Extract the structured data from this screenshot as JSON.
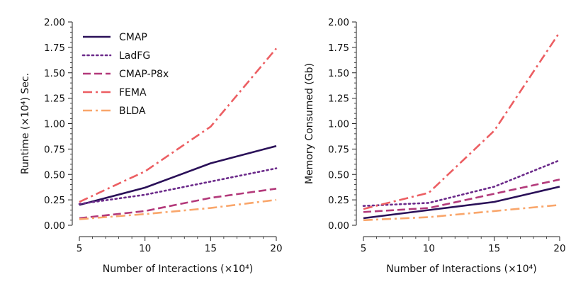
{
  "chart_data": [
    {
      "type": "line",
      "title": "",
      "xlabel": "Number of Interactions (×10⁴)",
      "ylabel": "Runtime (×10⁴) Sec.",
      "x": [
        5,
        10,
        15,
        20
      ],
      "xlim": [
        5,
        20
      ],
      "ylim": [
        0,
        2.0
      ],
      "xticks": [
        "5",
        "10",
        "15",
        "20"
      ],
      "yticks": [
        "0.00",
        "0.25",
        "0.50",
        "0.75",
        "1.00",
        "1.25",
        "1.50",
        "1.75",
        "2.00"
      ],
      "legend": "top-left",
      "series": [
        {
          "name": "CMAP",
          "color": "#2a1058",
          "dash": "solid",
          "values": [
            0.2,
            0.37,
            0.61,
            0.78
          ]
        },
        {
          "name": "LadFG",
          "color": "#6b2a8a",
          "dash": "dotted",
          "values": [
            0.21,
            0.3,
            0.43,
            0.56
          ]
        },
        {
          "name": "CMAP-P8x",
          "color": "#b3397a",
          "dash": "dashed",
          "values": [
            0.07,
            0.14,
            0.27,
            0.36
          ]
        },
        {
          "name": "FEMA",
          "color": "#ec5e62",
          "dash": "dashdot",
          "values": [
            0.23,
            0.53,
            0.97,
            1.74
          ]
        },
        {
          "name": "BLDA",
          "color": "#f9a66b",
          "dash": "dashdot",
          "values": [
            0.06,
            0.11,
            0.17,
            0.25
          ]
        }
      ]
    },
    {
      "type": "line",
      "title": "",
      "xlabel": "Number of Interactions (×10⁴)",
      "ylabel": "Memory Consumed (Gb)",
      "x": [
        5,
        10,
        15,
        20
      ],
      "xlim": [
        5,
        20
      ],
      "ylim": [
        0,
        2.0
      ],
      "xticks": [
        "5",
        "10",
        "15",
        "20"
      ],
      "yticks": [
        "0.00",
        "0.25",
        "0.50",
        "0.75",
        "1.00",
        "1.25",
        "1.50",
        "1.75",
        "2.00"
      ],
      "series": [
        {
          "name": "CMAP",
          "color": "#2a1058",
          "dash": "solid",
          "values": [
            0.07,
            0.15,
            0.23,
            0.38
          ]
        },
        {
          "name": "LadFG",
          "color": "#6b2a8a",
          "dash": "dotted",
          "values": [
            0.19,
            0.22,
            0.38,
            0.64
          ]
        },
        {
          "name": "CMAP-P8x",
          "color": "#b3397a",
          "dash": "dashed",
          "values": [
            0.13,
            0.17,
            0.31,
            0.45
          ]
        },
        {
          "name": "FEMA",
          "color": "#ec5e62",
          "dash": "dashdot",
          "values": [
            0.16,
            0.32,
            0.93,
            1.9
          ]
        },
        {
          "name": "BLDA",
          "color": "#f9a66b",
          "dash": "dashdot",
          "values": [
            0.05,
            0.08,
            0.14,
            0.2
          ]
        }
      ]
    }
  ]
}
